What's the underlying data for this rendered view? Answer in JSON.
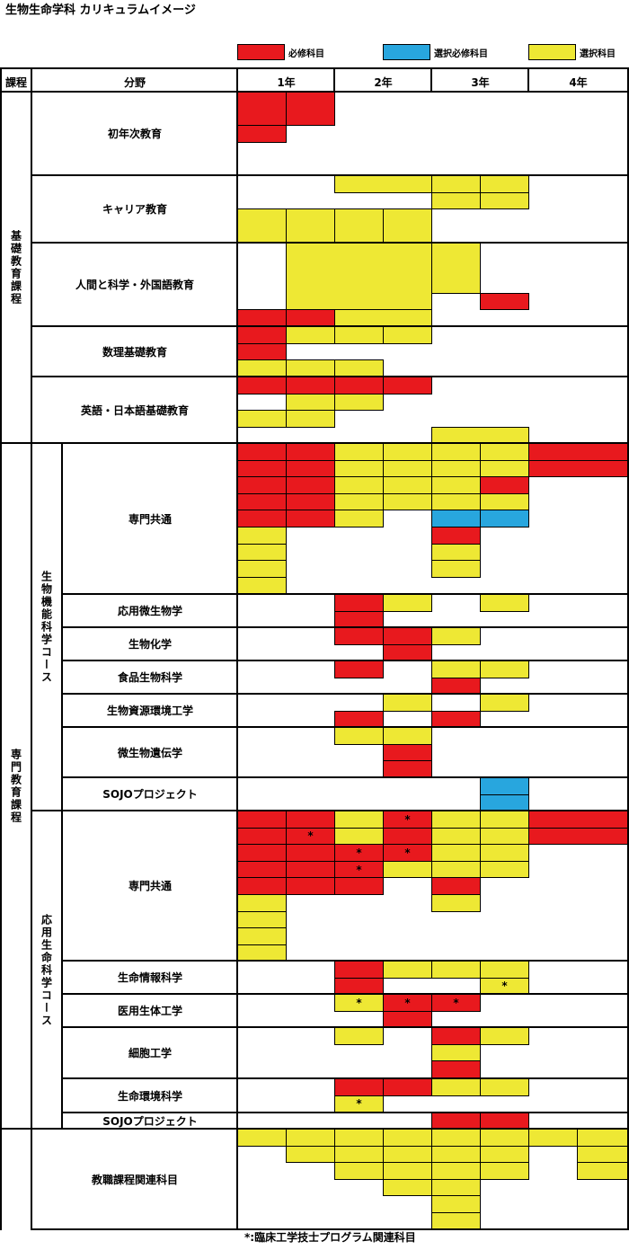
{
  "title": "生物生命学科 カリキュラムイメージ",
  "legend": [
    {
      "label": "必修科目",
      "color": "#E8191E"
    },
    {
      "label": "選択必修科目",
      "color": "#28A6DE"
    },
    {
      "label": "選択科目",
      "color": "#EEE834"
    }
  ],
  "header": {
    "course": "課程",
    "field": "分野",
    "years": [
      "1年",
      "2年",
      "3年",
      "4年"
    ]
  },
  "programs": [
    "基礎教育課程",
    "専門教育課程"
  ],
  "courses": [
    "生物機能科学コース",
    "応用生命科学コース"
  ],
  "rows": [
    {
      "label": "初年次教育",
      "blocks": [
        [
          0,
          0,
          1,
          2,
          "R"
        ],
        [
          1,
          0,
          1,
          2,
          "R"
        ],
        [
          0,
          2,
          1,
          1,
          "R"
        ]
      ]
    },
    {
      "label": "キャリア教育",
      "blocks": [
        [
          2,
          0,
          2,
          1,
          "Y"
        ],
        [
          4,
          0,
          1,
          1,
          "Y"
        ],
        [
          5,
          0,
          1,
          1,
          "Y"
        ],
        [
          4,
          1,
          1,
          1,
          "Y"
        ],
        [
          5,
          1,
          1,
          1,
          "Y"
        ],
        [
          0,
          2,
          1,
          2,
          "Y"
        ],
        [
          1,
          2,
          1,
          2,
          "Y"
        ],
        [
          2,
          2,
          1,
          2,
          "Y"
        ],
        [
          3,
          2,
          1,
          2,
          "Y"
        ]
      ]
    },
    {
      "label": "人間と科学・外国語教育",
      "blocks": [
        [
          1,
          0,
          3,
          4,
          "Y"
        ],
        [
          4,
          0,
          1,
          3,
          "Y"
        ],
        [
          5,
          3,
          1,
          1,
          "R"
        ],
        [
          0,
          4,
          1,
          1,
          "R"
        ],
        [
          1,
          4,
          1,
          1,
          "R"
        ],
        [
          2,
          4,
          2,
          1,
          "Y"
        ]
      ]
    },
    {
      "label": "数理基礎教育",
      "blocks": [
        [
          0,
          0,
          1,
          1,
          "R"
        ],
        [
          1,
          0,
          1,
          1,
          "Y"
        ],
        [
          2,
          0,
          1,
          1,
          "Y"
        ],
        [
          3,
          0,
          1,
          1,
          "Y"
        ],
        [
          0,
          1,
          1,
          1,
          "R"
        ],
        [
          0,
          2,
          1,
          1,
          "Y"
        ],
        [
          1,
          2,
          1,
          1,
          "Y"
        ],
        [
          2,
          2,
          1,
          1,
          "Y"
        ]
      ]
    },
    {
      "label": "英語・日本語基礎教育",
      "blocks": [
        [
          0,
          0,
          1,
          1,
          "R"
        ],
        [
          1,
          0,
          1,
          1,
          "R"
        ],
        [
          2,
          0,
          1,
          1,
          "R"
        ],
        [
          3,
          0,
          1,
          1,
          "R"
        ],
        [
          1,
          1,
          1,
          1,
          "Y"
        ],
        [
          2,
          1,
          1,
          1,
          "Y"
        ],
        [
          0,
          2,
          1,
          1,
          "Y"
        ],
        [
          1,
          2,
          1,
          1,
          "Y"
        ],
        [
          4,
          3,
          2,
          1,
          "Y"
        ]
      ]
    },
    {
      "label": "専門共通",
      "blocks": [
        [
          0,
          0,
          1,
          1,
          "R"
        ],
        [
          1,
          0,
          1,
          1,
          "R"
        ],
        [
          2,
          0,
          1,
          1,
          "Y"
        ],
        [
          3,
          0,
          1,
          1,
          "Y"
        ],
        [
          4,
          0,
          1,
          1,
          "Y"
        ],
        [
          5,
          0,
          1,
          1,
          "Y"
        ],
        [
          6,
          0,
          2,
          1,
          "R"
        ],
        [
          0,
          1,
          1,
          1,
          "R"
        ],
        [
          1,
          1,
          1,
          1,
          "R"
        ],
        [
          2,
          1,
          1,
          1,
          "Y"
        ],
        [
          3,
          1,
          1,
          1,
          "Y"
        ],
        [
          4,
          1,
          1,
          1,
          "Y"
        ],
        [
          5,
          1,
          1,
          1,
          "Y"
        ],
        [
          6,
          1,
          2,
          1,
          "R"
        ],
        [
          0,
          2,
          1,
          1,
          "R"
        ],
        [
          1,
          2,
          1,
          1,
          "R"
        ],
        [
          2,
          2,
          1,
          1,
          "Y"
        ],
        [
          3,
          2,
          1,
          1,
          "Y"
        ],
        [
          4,
          2,
          1,
          1,
          "Y"
        ],
        [
          5,
          2,
          1,
          1,
          "R"
        ],
        [
          0,
          3,
          1,
          1,
          "R"
        ],
        [
          1,
          3,
          1,
          1,
          "R"
        ],
        [
          2,
          3,
          1,
          1,
          "Y"
        ],
        [
          3,
          3,
          1,
          1,
          "Y"
        ],
        [
          4,
          3,
          1,
          1,
          "Y"
        ],
        [
          5,
          3,
          1,
          1,
          "Y"
        ],
        [
          0,
          4,
          1,
          1,
          "R"
        ],
        [
          1,
          4,
          1,
          1,
          "R"
        ],
        [
          2,
          4,
          1,
          1,
          "Y"
        ],
        [
          4,
          4,
          1,
          1,
          "B"
        ],
        [
          5,
          4,
          1,
          1,
          "B"
        ],
        [
          0,
          5,
          1,
          1,
          "Y"
        ],
        [
          4,
          5,
          1,
          1,
          "R"
        ],
        [
          0,
          6,
          1,
          1,
          "Y"
        ],
        [
          4,
          6,
          1,
          1,
          "Y"
        ],
        [
          0,
          7,
          1,
          1,
          "Y"
        ],
        [
          4,
          7,
          1,
          1,
          "Y"
        ],
        [
          0,
          8,
          1,
          1,
          "Y"
        ]
      ]
    },
    {
      "label": "応用微生物学",
      "blocks": [
        [
          2,
          0,
          1,
          1,
          "R"
        ],
        [
          3,
          0,
          1,
          1,
          "Y"
        ],
        [
          5,
          0,
          1,
          1,
          "Y"
        ],
        [
          2,
          1,
          1,
          1,
          "R"
        ]
      ]
    },
    {
      "label": "生物化学",
      "blocks": [
        [
          2,
          0,
          1,
          1,
          "R"
        ],
        [
          3,
          0,
          1,
          1,
          "R"
        ],
        [
          4,
          0,
          1,
          1,
          "Y"
        ],
        [
          3,
          1,
          1,
          1,
          "R"
        ]
      ]
    },
    {
      "label": "食品生物科学",
      "blocks": [
        [
          2,
          0,
          1,
          1,
          "R"
        ],
        [
          4,
          0,
          1,
          1,
          "Y"
        ],
        [
          5,
          0,
          1,
          1,
          "Y"
        ],
        [
          4,
          1,
          1,
          1,
          "R"
        ]
      ]
    },
    {
      "label": "生物資源環境工学",
      "blocks": [
        [
          3,
          0,
          1,
          1,
          "Y"
        ],
        [
          5,
          0,
          1,
          1,
          "Y"
        ],
        [
          2,
          1,
          1,
          1,
          "R"
        ],
        [
          4,
          1,
          1,
          1,
          "R"
        ]
      ]
    },
    {
      "label": "微生物遺伝学",
      "blocks": [
        [
          2,
          0,
          1,
          1,
          "Y"
        ],
        [
          3,
          0,
          1,
          1,
          "Y"
        ],
        [
          3,
          1,
          1,
          1,
          "R"
        ],
        [
          3,
          2,
          1,
          1,
          "R"
        ]
      ]
    },
    {
      "label": "SOJOプロジェクト",
      "blocks": [
        [
          5,
          0,
          1,
          1,
          "B"
        ],
        [
          5,
          1,
          1,
          1,
          "B"
        ]
      ]
    },
    {
      "label": "専門共通",
      "blocks": [
        [
          0,
          0,
          1,
          1,
          "R"
        ],
        [
          1,
          0,
          1,
          1,
          "R"
        ],
        [
          2,
          0,
          1,
          1,
          "Y"
        ],
        [
          3,
          0,
          1,
          1,
          "R",
          "*"
        ],
        [
          4,
          0,
          1,
          1,
          "Y"
        ],
        [
          5,
          0,
          1,
          1,
          "Y"
        ],
        [
          6,
          0,
          2,
          1,
          "R"
        ],
        [
          0,
          1,
          1,
          1,
          "R"
        ],
        [
          1,
          1,
          1,
          1,
          "R",
          "*"
        ],
        [
          2,
          1,
          1,
          1,
          "Y"
        ],
        [
          3,
          1,
          1,
          1,
          "R"
        ],
        [
          4,
          1,
          1,
          1,
          "Y"
        ],
        [
          5,
          1,
          1,
          1,
          "Y"
        ],
        [
          6,
          1,
          2,
          1,
          "R"
        ],
        [
          0,
          2,
          1,
          1,
          "R"
        ],
        [
          1,
          2,
          1,
          1,
          "R"
        ],
        [
          2,
          2,
          1,
          1,
          "R",
          "*"
        ],
        [
          3,
          2,
          1,
          1,
          "R",
          "*"
        ],
        [
          4,
          2,
          1,
          1,
          "Y"
        ],
        [
          5,
          2,
          1,
          1,
          "Y"
        ],
        [
          0,
          3,
          1,
          1,
          "R"
        ],
        [
          1,
          3,
          1,
          1,
          "R"
        ],
        [
          2,
          3,
          1,
          1,
          "R",
          "*"
        ],
        [
          3,
          3,
          1,
          1,
          "Y"
        ],
        [
          4,
          3,
          1,
          1,
          "Y"
        ],
        [
          5,
          3,
          1,
          1,
          "Y"
        ],
        [
          0,
          4,
          1,
          1,
          "R"
        ],
        [
          1,
          4,
          1,
          1,
          "R"
        ],
        [
          2,
          4,
          1,
          1,
          "R"
        ],
        [
          4,
          4,
          1,
          1,
          "R"
        ],
        [
          0,
          5,
          1,
          1,
          "Y"
        ],
        [
          4,
          5,
          1,
          1,
          "Y"
        ],
        [
          0,
          6,
          1,
          1,
          "Y"
        ],
        [
          0,
          7,
          1,
          1,
          "Y"
        ],
        [
          0,
          8,
          1,
          1,
          "Y"
        ]
      ]
    },
    {
      "label": "生命情報科学",
      "blocks": [
        [
          2,
          0,
          1,
          1,
          "R"
        ],
        [
          3,
          0,
          1,
          1,
          "Y"
        ],
        [
          4,
          0,
          1,
          1,
          "Y"
        ],
        [
          5,
          0,
          1,
          1,
          "Y"
        ],
        [
          2,
          1,
          1,
          1,
          "R"
        ],
        [
          5,
          1,
          1,
          1,
          "Y",
          "*"
        ]
      ]
    },
    {
      "label": "医用生体工学",
      "blocks": [
        [
          2,
          0,
          1,
          1,
          "Y",
          "*"
        ],
        [
          3,
          0,
          1,
          1,
          "R",
          "*"
        ],
        [
          4,
          0,
          1,
          1,
          "R",
          "*"
        ],
        [
          3,
          1,
          1,
          1,
          "R"
        ]
      ]
    },
    {
      "label": "細胞工学",
      "blocks": [
        [
          2,
          0,
          1,
          1,
          "Y"
        ],
        [
          4,
          0,
          1,
          1,
          "R"
        ],
        [
          5,
          0,
          1,
          1,
          "Y"
        ],
        [
          4,
          1,
          1,
          1,
          "Y"
        ],
        [
          4,
          2,
          1,
          1,
          "R"
        ]
      ]
    },
    {
      "label": "生命環境科学",
      "blocks": [
        [
          2,
          0,
          1,
          1,
          "R"
        ],
        [
          3,
          0,
          1,
          1,
          "R"
        ],
        [
          4,
          0,
          1,
          1,
          "Y"
        ],
        [
          5,
          0,
          1,
          1,
          "Y"
        ],
        [
          2,
          1,
          1,
          1,
          "Y",
          "*"
        ]
      ]
    },
    {
      "label": "SOJOプロジェクト",
      "blocks": [
        [
          4,
          0,
          1,
          1,
          "R"
        ],
        [
          5,
          0,
          1,
          1,
          "R"
        ]
      ]
    },
    {
      "label": "教職課程関連科目",
      "blocks": [
        [
          0,
          0,
          1,
          1,
          "Y"
        ],
        [
          1,
          0,
          1,
          1,
          "Y"
        ],
        [
          2,
          0,
          1,
          1,
          "Y"
        ],
        [
          3,
          0,
          1,
          1,
          "Y"
        ],
        [
          4,
          0,
          1,
          1,
          "Y"
        ],
        [
          5,
          0,
          1,
          1,
          "Y"
        ],
        [
          6,
          0,
          1,
          1,
          "Y"
        ],
        [
          7,
          0,
          1,
          1,
          "Y"
        ],
        [
          1,
          1,
          1,
          1,
          "Y"
        ],
        [
          2,
          1,
          1,
          1,
          "Y"
        ],
        [
          3,
          1,
          1,
          1,
          "Y"
        ],
        [
          4,
          1,
          1,
          1,
          "Y"
        ],
        [
          5,
          1,
          1,
          1,
          "Y"
        ],
        [
          7,
          1,
          1,
          1,
          "Y"
        ],
        [
          2,
          2,
          1,
          1,
          "Y"
        ],
        [
          3,
          2,
          1,
          1,
          "Y"
        ],
        [
          4,
          2,
          1,
          1,
          "Y"
        ],
        [
          5,
          2,
          1,
          1,
          "Y"
        ],
        [
          7,
          2,
          1,
          1,
          "Y"
        ],
        [
          3,
          3,
          1,
          1,
          "Y"
        ],
        [
          4,
          3,
          1,
          1,
          "Y"
        ],
        [
          4,
          4,
          1,
          1,
          "Y"
        ],
        [
          4,
          5,
          1,
          1,
          "Y"
        ]
      ]
    }
  ],
  "footnote": "*:臨床工学技士プログラム関連科目"
}
